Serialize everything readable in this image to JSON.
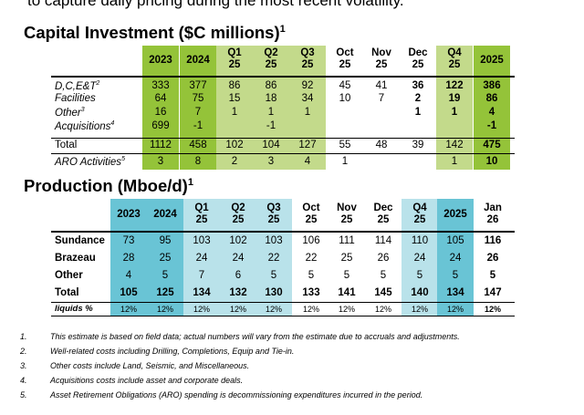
{
  "cut_heading": "to capture daily pricing during the most recent volatility.",
  "capital": {
    "title": "Capital Investment ($C millions)",
    "title_sup": "1",
    "columns": [
      {
        "l1": "2023",
        "l2": ""
      },
      {
        "l1": "2024",
        "l2": ""
      },
      {
        "l1": "Q1",
        "l2": "25"
      },
      {
        "l1": "Q2",
        "l2": "25"
      },
      {
        "l1": "Q3",
        "l2": "25"
      },
      {
        "l1": "Oct",
        "l2": "25"
      },
      {
        "l1": "Nov",
        "l2": "25"
      },
      {
        "l1": "Dec",
        "l2": "25"
      },
      {
        "l1": "Q4",
        "l2": "25"
      },
      {
        "l1": "2025",
        "l2": ""
      }
    ],
    "rows": [
      {
        "label": "D,C,E&T",
        "sup": "2",
        "values": [
          "333",
          "377",
          "86",
          "86",
          "92",
          "45",
          "41",
          "36",
          "122",
          "386"
        ]
      },
      {
        "label": "Facilities",
        "sup": "",
        "values": [
          "64",
          "75",
          "15",
          "18",
          "34",
          "10",
          "7",
          "2",
          "19",
          "86"
        ]
      },
      {
        "label": "Other",
        "sup": "3",
        "values": [
          "16",
          "7",
          "1",
          "1",
          "1",
          "",
          "",
          "1",
          "1",
          "4"
        ]
      },
      {
        "label": "Acquisitions",
        "sup": "4",
        "values": [
          "699",
          "-1",
          "",
          "-1",
          "",
          "",
          "",
          "",
          "",
          "-1"
        ]
      },
      {
        "label": "Total",
        "sup": "",
        "values": [
          "1112",
          "458",
          "102",
          "104",
          "127",
          "55",
          "48",
          "39",
          "142",
          "475"
        ]
      },
      {
        "label": "ARO Activities",
        "sup": "5",
        "values": [
          "3",
          "8",
          "2",
          "3",
          "4",
          "1",
          "",
          "",
          "1",
          "10"
        ]
      }
    ]
  },
  "production": {
    "title": "Production (Mboe/d)",
    "title_sup": "1",
    "columns": [
      {
        "l1": "2023",
        "l2": ""
      },
      {
        "l1": "2024",
        "l2": ""
      },
      {
        "l1": "Q1",
        "l2": "25"
      },
      {
        "l1": "Q2",
        "l2": "25"
      },
      {
        "l1": "Q3",
        "l2": "25"
      },
      {
        "l1": "Oct",
        "l2": "25"
      },
      {
        "l1": "Nov",
        "l2": "25"
      },
      {
        "l1": "Dec",
        "l2": "25"
      },
      {
        "l1": "Q4",
        "l2": "25"
      },
      {
        "l1": "2025",
        "l2": ""
      },
      {
        "l1": "Jan",
        "l2": "26"
      }
    ],
    "rows": [
      {
        "label": "Sundance",
        "values": [
          "73",
          "95",
          "103",
          "102",
          "103",
          "106",
          "111",
          "114",
          "110",
          "105",
          "116"
        ]
      },
      {
        "label": "Brazeau",
        "values": [
          "28",
          "25",
          "24",
          "24",
          "22",
          "22",
          "25",
          "26",
          "24",
          "24",
          "26"
        ]
      },
      {
        "label": "Other",
        "values": [
          "4",
          "5",
          "7",
          "6",
          "5",
          "5",
          "5",
          "5",
          "5",
          "5",
          "5"
        ]
      },
      {
        "label": "Total",
        "values": [
          "105",
          "125",
          "134",
          "132",
          "130",
          "133",
          "141",
          "145",
          "140",
          "134",
          "147"
        ]
      },
      {
        "label": "liquids %",
        "values": [
          "12%",
          "12%",
          "12%",
          "12%",
          "12%",
          "12%",
          "12%",
          "12%",
          "12%",
          "12%",
          "12%"
        ]
      }
    ]
  },
  "footnotes": [
    {
      "num": "1.",
      "text": "This estimate is based on field data; actual numbers will vary from the estimate due to accruals and adjustments."
    },
    {
      "num": "2.",
      "text": "Well-related costs including Drilling, Completions, Equip and Tie-in."
    },
    {
      "num": "3.",
      "text": "Other costs include Land, Seismic, and Miscellaneous."
    },
    {
      "num": "4.",
      "text": "Acquisitions costs include asset and corporate deals."
    },
    {
      "num": "5.",
      "text": "Asset Retirement Obligations (ARO) spending is decommissioning expenditures incurred in the period."
    }
  ]
}
